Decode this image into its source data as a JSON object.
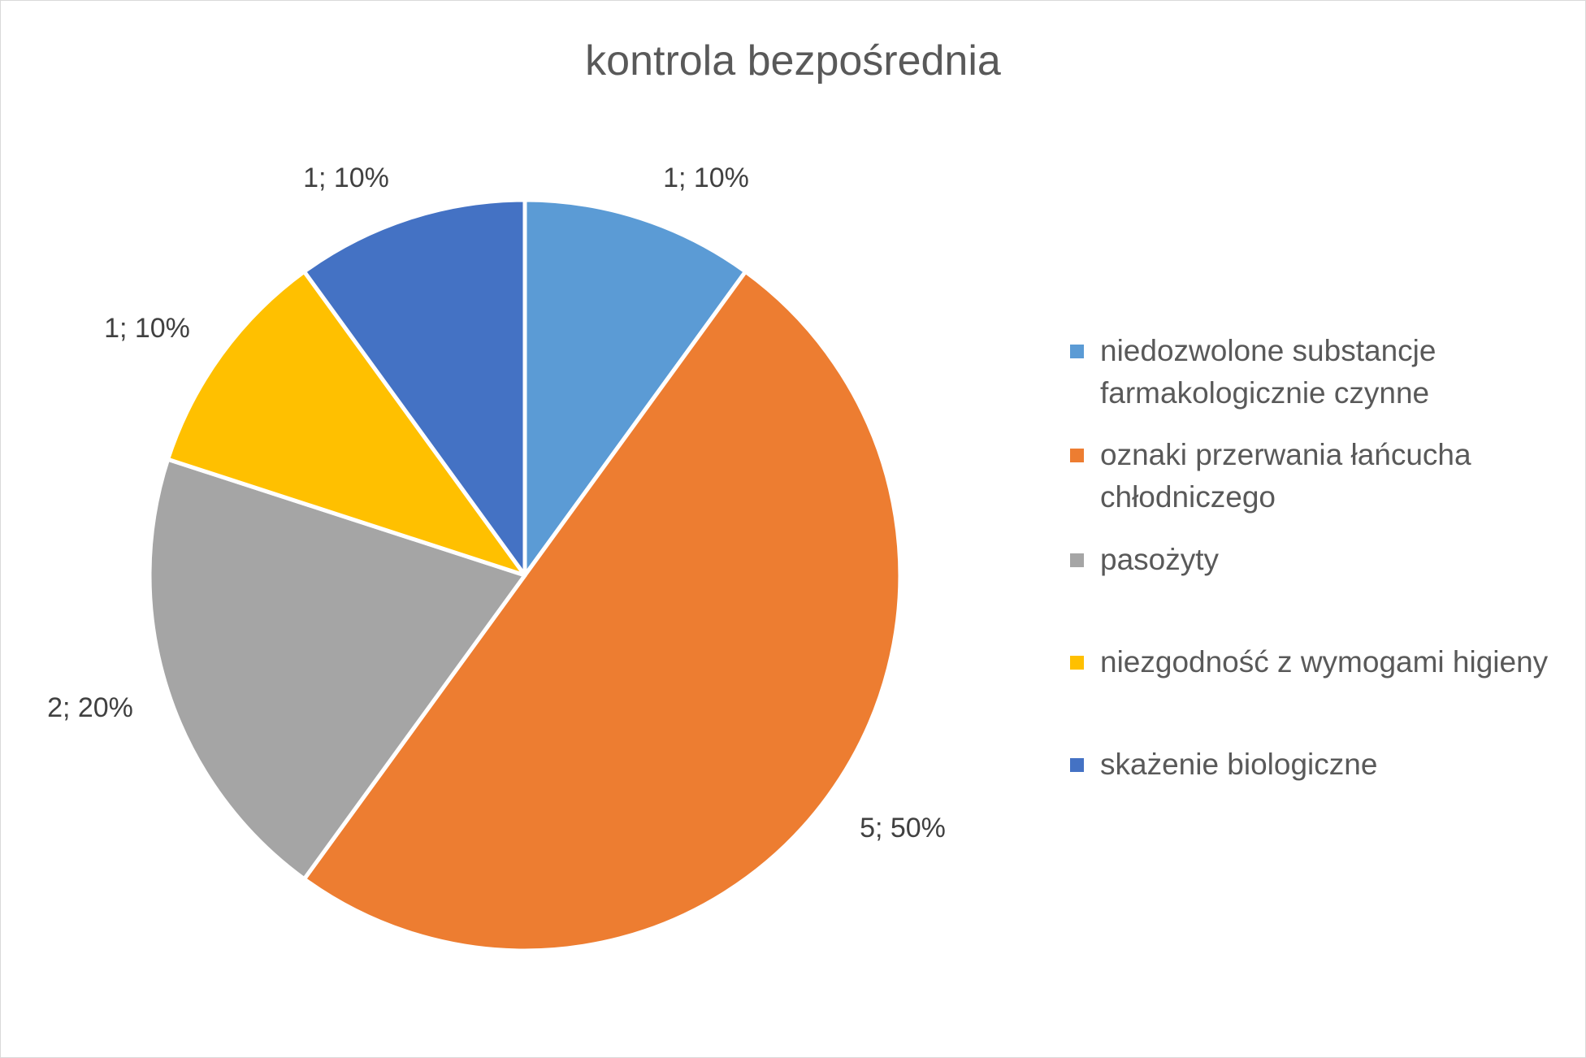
{
  "chart_data": {
    "type": "pie",
    "title": "kontrola bezpośrednia",
    "legend_position": "right",
    "slices": [
      {
        "name": "niedozwolone substancje farmakologicznie czynne",
        "value": 1,
        "percent": 10,
        "label": "1; 10%",
        "color": "#5B9BD5"
      },
      {
        "name": "oznaki przerwania łańcucha chłodniczego",
        "value": 5,
        "percent": 50,
        "label": "5; 50%",
        "color": "#ED7D31"
      },
      {
        "name": "pasożyty",
        "value": 2,
        "percent": 20,
        "label": "2; 20%",
        "color": "#A5A5A5"
      },
      {
        "name": "niezgodność z wymogami higieny",
        "value": 1,
        "percent": 10,
        "label": "1; 10%",
        "color": "#FFC000"
      },
      {
        "name": "skażenie biologiczne",
        "value": 1,
        "percent": 10,
        "label": "1; 10%",
        "color": "#4472C4"
      }
    ]
  },
  "legend": {
    "items": [
      {
        "lines": [
          "niedozwolone substancje",
          "farmakologicznie czynne"
        ]
      },
      {
        "lines": [
          "oznaki przerwania łańcucha",
          "chłodniczego"
        ]
      },
      {
        "lines": [
          "pasożyty"
        ]
      },
      {
        "lines": [
          "niezgodność z wymogami higieny"
        ]
      },
      {
        "lines": [
          "skażenie biologiczne"
        ]
      }
    ]
  }
}
